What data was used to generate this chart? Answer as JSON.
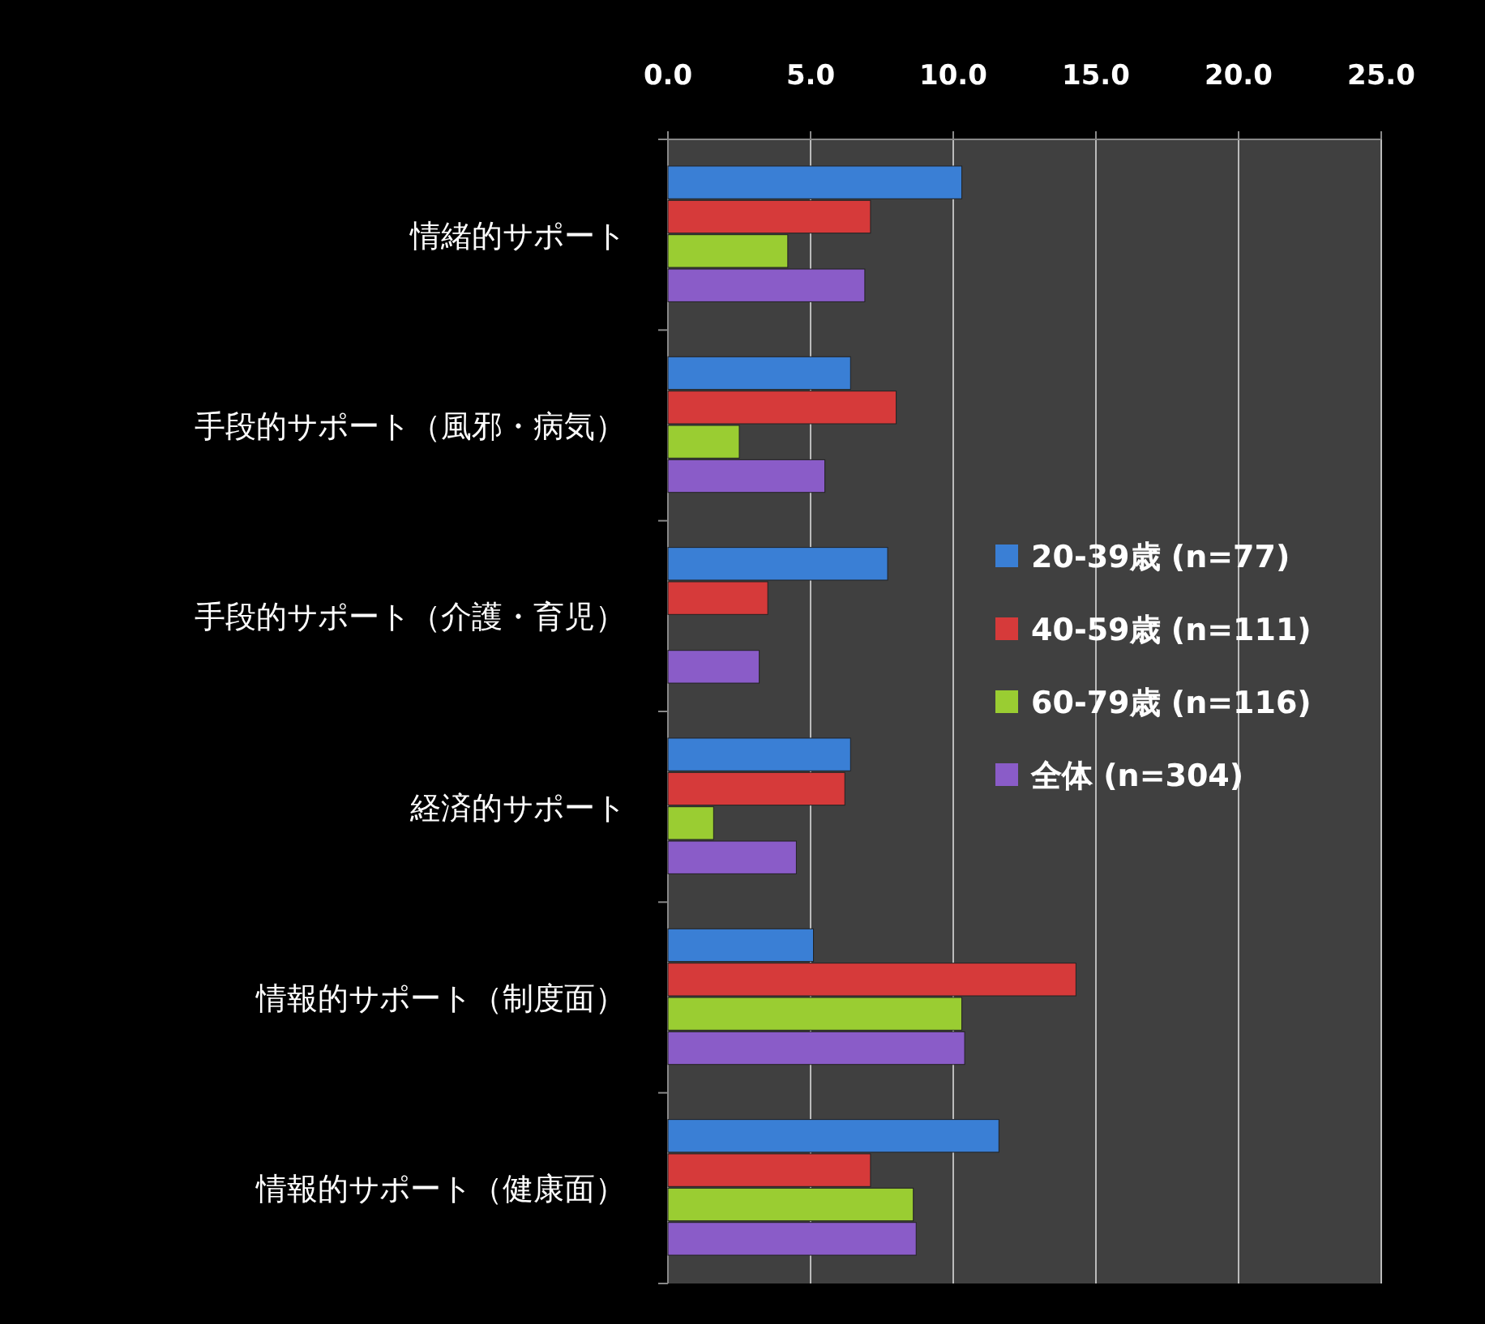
{
  "chart_data": {
    "type": "bar",
    "orientation": "horizontal",
    "categories": [
      "情緒的サポート",
      "手段的サポート（風邪・病気）",
      "手段的サポート（介護・育児）",
      "経済的サポート",
      "情報的サポート（制度面）",
      "情報的サポート（健康面）"
    ],
    "series": [
      {
        "name": "20-39歳 (n=77)",
        "color": "#3a7fd5",
        "values": [
          10.3,
          6.4,
          7.7,
          6.4,
          5.1,
          11.6
        ]
      },
      {
        "name": "40-59歳 (n=111)",
        "color": "#d63a3a",
        "values": [
          7.1,
          8.0,
          3.5,
          6.2,
          14.3,
          7.1
        ]
      },
      {
        "name": "60-79歳 (n=116)",
        "color": "#9acd32",
        "values": [
          4.2,
          2.5,
          0,
          1.6,
          10.3,
          8.6
        ]
      },
      {
        "name": "全体 (n=304)",
        "color": "#8a5cc8",
        "values": [
          6.9,
          5.5,
          3.2,
          4.5,
          10.4,
          8.7
        ]
      }
    ],
    "xlim": [
      0,
      25
    ],
    "xticks": [
      {
        "value": 0,
        "label": "0.0"
      },
      {
        "value": 5,
        "label": "5.0"
      },
      {
        "value": 10,
        "label": "10.0"
      },
      {
        "value": 15,
        "label": "15.0"
      },
      {
        "value": 20,
        "label": "20.0"
      },
      {
        "value": 25,
        "label": "25.0"
      }
    ],
    "grid": "x",
    "legend": "right"
  }
}
